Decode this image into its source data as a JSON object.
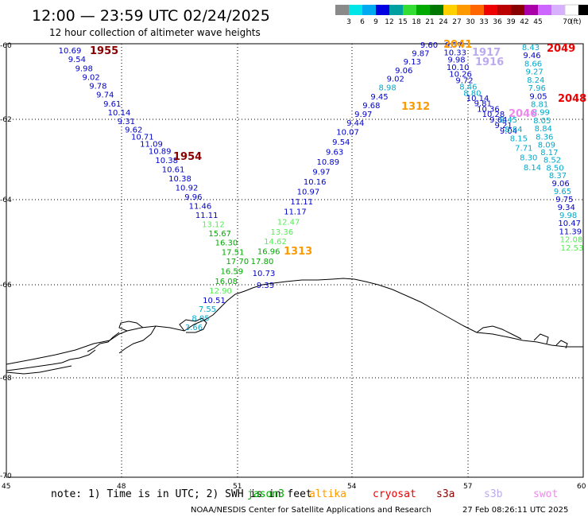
{
  "title": "12:00 — 23:59 UTC 02/24/2025",
  "subtitle": "12 hour collection of altimeter wave heights",
  "colorbar": {
    "colors": [
      "#8a8a8a",
      "#00e5e5",
      "#00aaf0",
      "#0000e0",
      "#00a0a0",
      "#33dd33",
      "#00aa00",
      "#007700",
      "#ffd000",
      "#ff9900",
      "#ff6600",
      "#ee0000",
      "#bb0000",
      "#880000",
      "#aa00aa",
      "#cc66ff",
      "#d8b0ff",
      "#ffffff",
      "#000000"
    ],
    "tick_labels": [
      "3",
      "6",
      "9",
      "12",
      "15",
      "18",
      "21",
      "24",
      "27",
      "30",
      "33",
      "36",
      "39",
      "42",
      "45",
      "70"
    ],
    "unit": "(ft)"
  },
  "map": {
    "lon_labels": [
      "45",
      "48",
      "51",
      "54",
      "57",
      "60"
    ],
    "lat_labels": [
      "-60",
      "-62",
      "-64",
      "-66",
      "-68",
      "-70"
    ]
  },
  "track_colors": {
    "blue": "#0000cc",
    "lightgreen": "#55ee55",
    "green": "#00aa00",
    "cyan": "#00aacc",
    "lavender": "#bbaaee",
    "pink": "#ee88ee"
  },
  "pass_labels": [
    {
      "text": "1955",
      "color": "#880000"
    },
    {
      "text": "1954",
      "color": "#880000"
    },
    {
      "text": "1312",
      "color": "#ff9900"
    },
    {
      "text": "1313",
      "color": "#ff9900"
    },
    {
      "text": "2049",
      "color": "#ee0000"
    },
    {
      "text": "2048",
      "color": "#ee0000"
    },
    {
      "text": "1917",
      "color": "#bbaaee"
    },
    {
      "text": "1916",
      "color": "#bbaaee"
    },
    {
      "text": "2046",
      "color": "#ee88ee"
    },
    {
      "text": "2041",
      "color": "#ff9900"
    }
  ],
  "track_1955": [
    {
      "v": "10.69",
      "c": "blue"
    },
    {
      "v": "9.54",
      "c": "blue"
    },
    {
      "v": "9.98",
      "c": "blue"
    },
    {
      "v": "9.02",
      "c": "blue"
    },
    {
      "v": "9.78",
      "c": "blue"
    },
    {
      "v": "9.74",
      "c": "blue"
    },
    {
      "v": "9.61",
      "c": "blue"
    },
    {
      "v": "10.14",
      "c": "blue"
    },
    {
      "v": "9.31",
      "c": "blue"
    },
    {
      "v": "9.62",
      "c": "blue"
    },
    {
      "v": "10.71",
      "c": "blue"
    },
    {
      "v": "11.09",
      "c": "blue"
    },
    {
      "v": "10.89",
      "c": "blue"
    },
    {
      "v": "10.38",
      "c": "blue"
    },
    {
      "v": "10.61",
      "c": "blue"
    },
    {
      "v": "10.38",
      "c": "blue"
    },
    {
      "v": "10.92",
      "c": "blue"
    },
    {
      "v": "9.96",
      "c": "blue"
    },
    {
      "v": "11.46",
      "c": "blue"
    },
    {
      "v": "11.11",
      "c": "blue"
    },
    {
      "v": "13.12",
      "c": "lightgreen"
    },
    {
      "v": "15.67",
      "c": "green"
    },
    {
      "v": "16.30",
      "c": "green"
    },
    {
      "v": "17.51",
      "c": "green"
    },
    {
      "v": "17.70",
      "c": "green"
    },
    {
      "v": "16.59",
      "c": "green"
    },
    {
      "v": "16.08",
      "c": "green"
    },
    {
      "v": "12.90",
      "c": "lightgreen"
    },
    {
      "v": "10.51",
      "c": "blue"
    },
    {
      "v": "7.55",
      "c": "cyan"
    },
    {
      "v": "8.05",
      "c": "cyan"
    },
    {
      "v": "3.66",
      "c": "cyan"
    }
  ],
  "track_1312": [
    {
      "v": "9.60",
      "c": "blue"
    },
    {
      "v": "9.87",
      "c": "blue"
    },
    {
      "v": "9.13",
      "c": "blue"
    },
    {
      "v": "9.06",
      "c": "blue"
    },
    {
      "v": "9.02",
      "c": "blue"
    },
    {
      "v": "8.98",
      "c": "cyan"
    },
    {
      "v": "9.45",
      "c": "blue"
    },
    {
      "v": "9.68",
      "c": "blue"
    },
    {
      "v": "9.97",
      "c": "blue"
    },
    {
      "v": "9.44",
      "c": "blue"
    },
    {
      "v": "10.07",
      "c": "blue"
    },
    {
      "v": "9.54",
      "c": "blue"
    },
    {
      "v": "9.63",
      "c": "blue"
    },
    {
      "v": "10.89",
      "c": "blue"
    },
    {
      "v": "9.97",
      "c": "blue"
    },
    {
      "v": "10.16",
      "c": "blue"
    },
    {
      "v": "10.97",
      "c": "blue"
    },
    {
      "v": "11.11",
      "c": "blue"
    },
    {
      "v": "11.17",
      "c": "blue"
    },
    {
      "v": "12.47",
      "c": "lightgreen"
    },
    {
      "v": "13.36",
      "c": "lightgreen"
    },
    {
      "v": "14.62",
      "c": "lightgreen"
    },
    {
      "v": "16.96",
      "c": "green"
    },
    {
      "v": "17.80",
      "c": "green"
    },
    {
      "v": "10.73",
      "c": "blue"
    },
    {
      "v": "9.33",
      "c": "blue"
    }
  ],
  "track_1916": [
    {
      "v": "9.77",
      "c": "blue"
    },
    {
      "v": "10.33",
      "c": "blue"
    },
    {
      "v": "9.98",
      "c": "blue"
    },
    {
      "v": "10.10",
      "c": "blue"
    },
    {
      "v": "10.26",
      "c": "blue"
    },
    {
      "v": "9.72",
      "c": "blue"
    },
    {
      "v": "8.46",
      "c": "cyan"
    },
    {
      "v": "8.80",
      "c": "cyan"
    },
    {
      "v": "10.14",
      "c": "blue"
    },
    {
      "v": "9.81",
      "c": "blue"
    },
    {
      "v": "10.36",
      "c": "blue"
    },
    {
      "v": "10.28",
      "c": "blue"
    },
    {
      "v": "9.64",
      "c": "blue"
    },
    {
      "v": "9.21",
      "c": "blue"
    },
    {
      "v": "9.04",
      "c": "blue"
    }
  ],
  "track_2049": [
    {
      "v": "8.43",
      "c": "cyan"
    },
    {
      "v": "9.46",
      "c": "blue"
    },
    {
      "v": "8.66",
      "c": "cyan"
    },
    {
      "v": "9.27",
      "c": "cyan"
    },
    {
      "v": "8.24",
      "c": "cyan"
    },
    {
      "v": "7.96",
      "c": "cyan"
    },
    {
      "v": "9.05",
      "c": "blue"
    },
    {
      "v": "8.81",
      "c": "cyan"
    },
    {
      "v": "8.99",
      "c": "cyan"
    },
    {
      "v": "8.05",
      "c": "cyan"
    },
    {
      "v": "8.84",
      "c": "cyan"
    },
    {
      "v": "8.36",
      "c": "cyan"
    },
    {
      "v": "8.09",
      "c": "cyan"
    },
    {
      "v": "8.17",
      "c": "cyan"
    },
    {
      "v": "8.52",
      "c": "cyan"
    },
    {
      "v": "8.50",
      "c": "cyan"
    },
    {
      "v": "8.37",
      "c": "cyan"
    },
    {
      "v": "9.06",
      "c": "blue"
    },
    {
      "v": "9.65",
      "c": "cyan"
    },
    {
      "v": "9.75",
      "c": "blue"
    },
    {
      "v": "9.34",
      "c": "blue"
    },
    {
      "v": "9.98",
      "c": "cyan"
    },
    {
      "v": "10.47",
      "c": "blue"
    },
    {
      "v": "11.39",
      "c": "blue"
    },
    {
      "v": "12.08",
      "c": "lightgreen"
    },
    {
      "v": "12.53",
      "c": "lightgreen"
    }
  ],
  "track_2046": [
    {
      "v": "8.45",
      "c": "cyan"
    },
    {
      "v": "8.84",
      "c": "cyan"
    },
    {
      "v": "8.15",
      "c": "cyan"
    },
    {
      "v": "7.71",
      "c": "cyan"
    },
    {
      "v": "8.30",
      "c": "cyan"
    },
    {
      "v": "8.14",
      "c": "cyan"
    }
  ],
  "footer": {
    "note": "note: 1) Time is in UTC; 2) SWH is in feet",
    "satellites": [
      {
        "name": "jason3",
        "color": "#00aa00"
      },
      {
        "name": "altika",
        "color": "#ff9900"
      },
      {
        "name": "cryosat",
        "color": "#ee0000"
      },
      {
        "name": "s3a",
        "color": "#880000"
      },
      {
        "name": "s3b",
        "color": "#bbaaee"
      },
      {
        "name": "swot",
        "color": "#ee88ee"
      }
    ],
    "credit": "NOAA/NESDIS Center for Satellite Applications and Research",
    "timestamp": "27 Feb 08:26:11 UTC 2025"
  }
}
